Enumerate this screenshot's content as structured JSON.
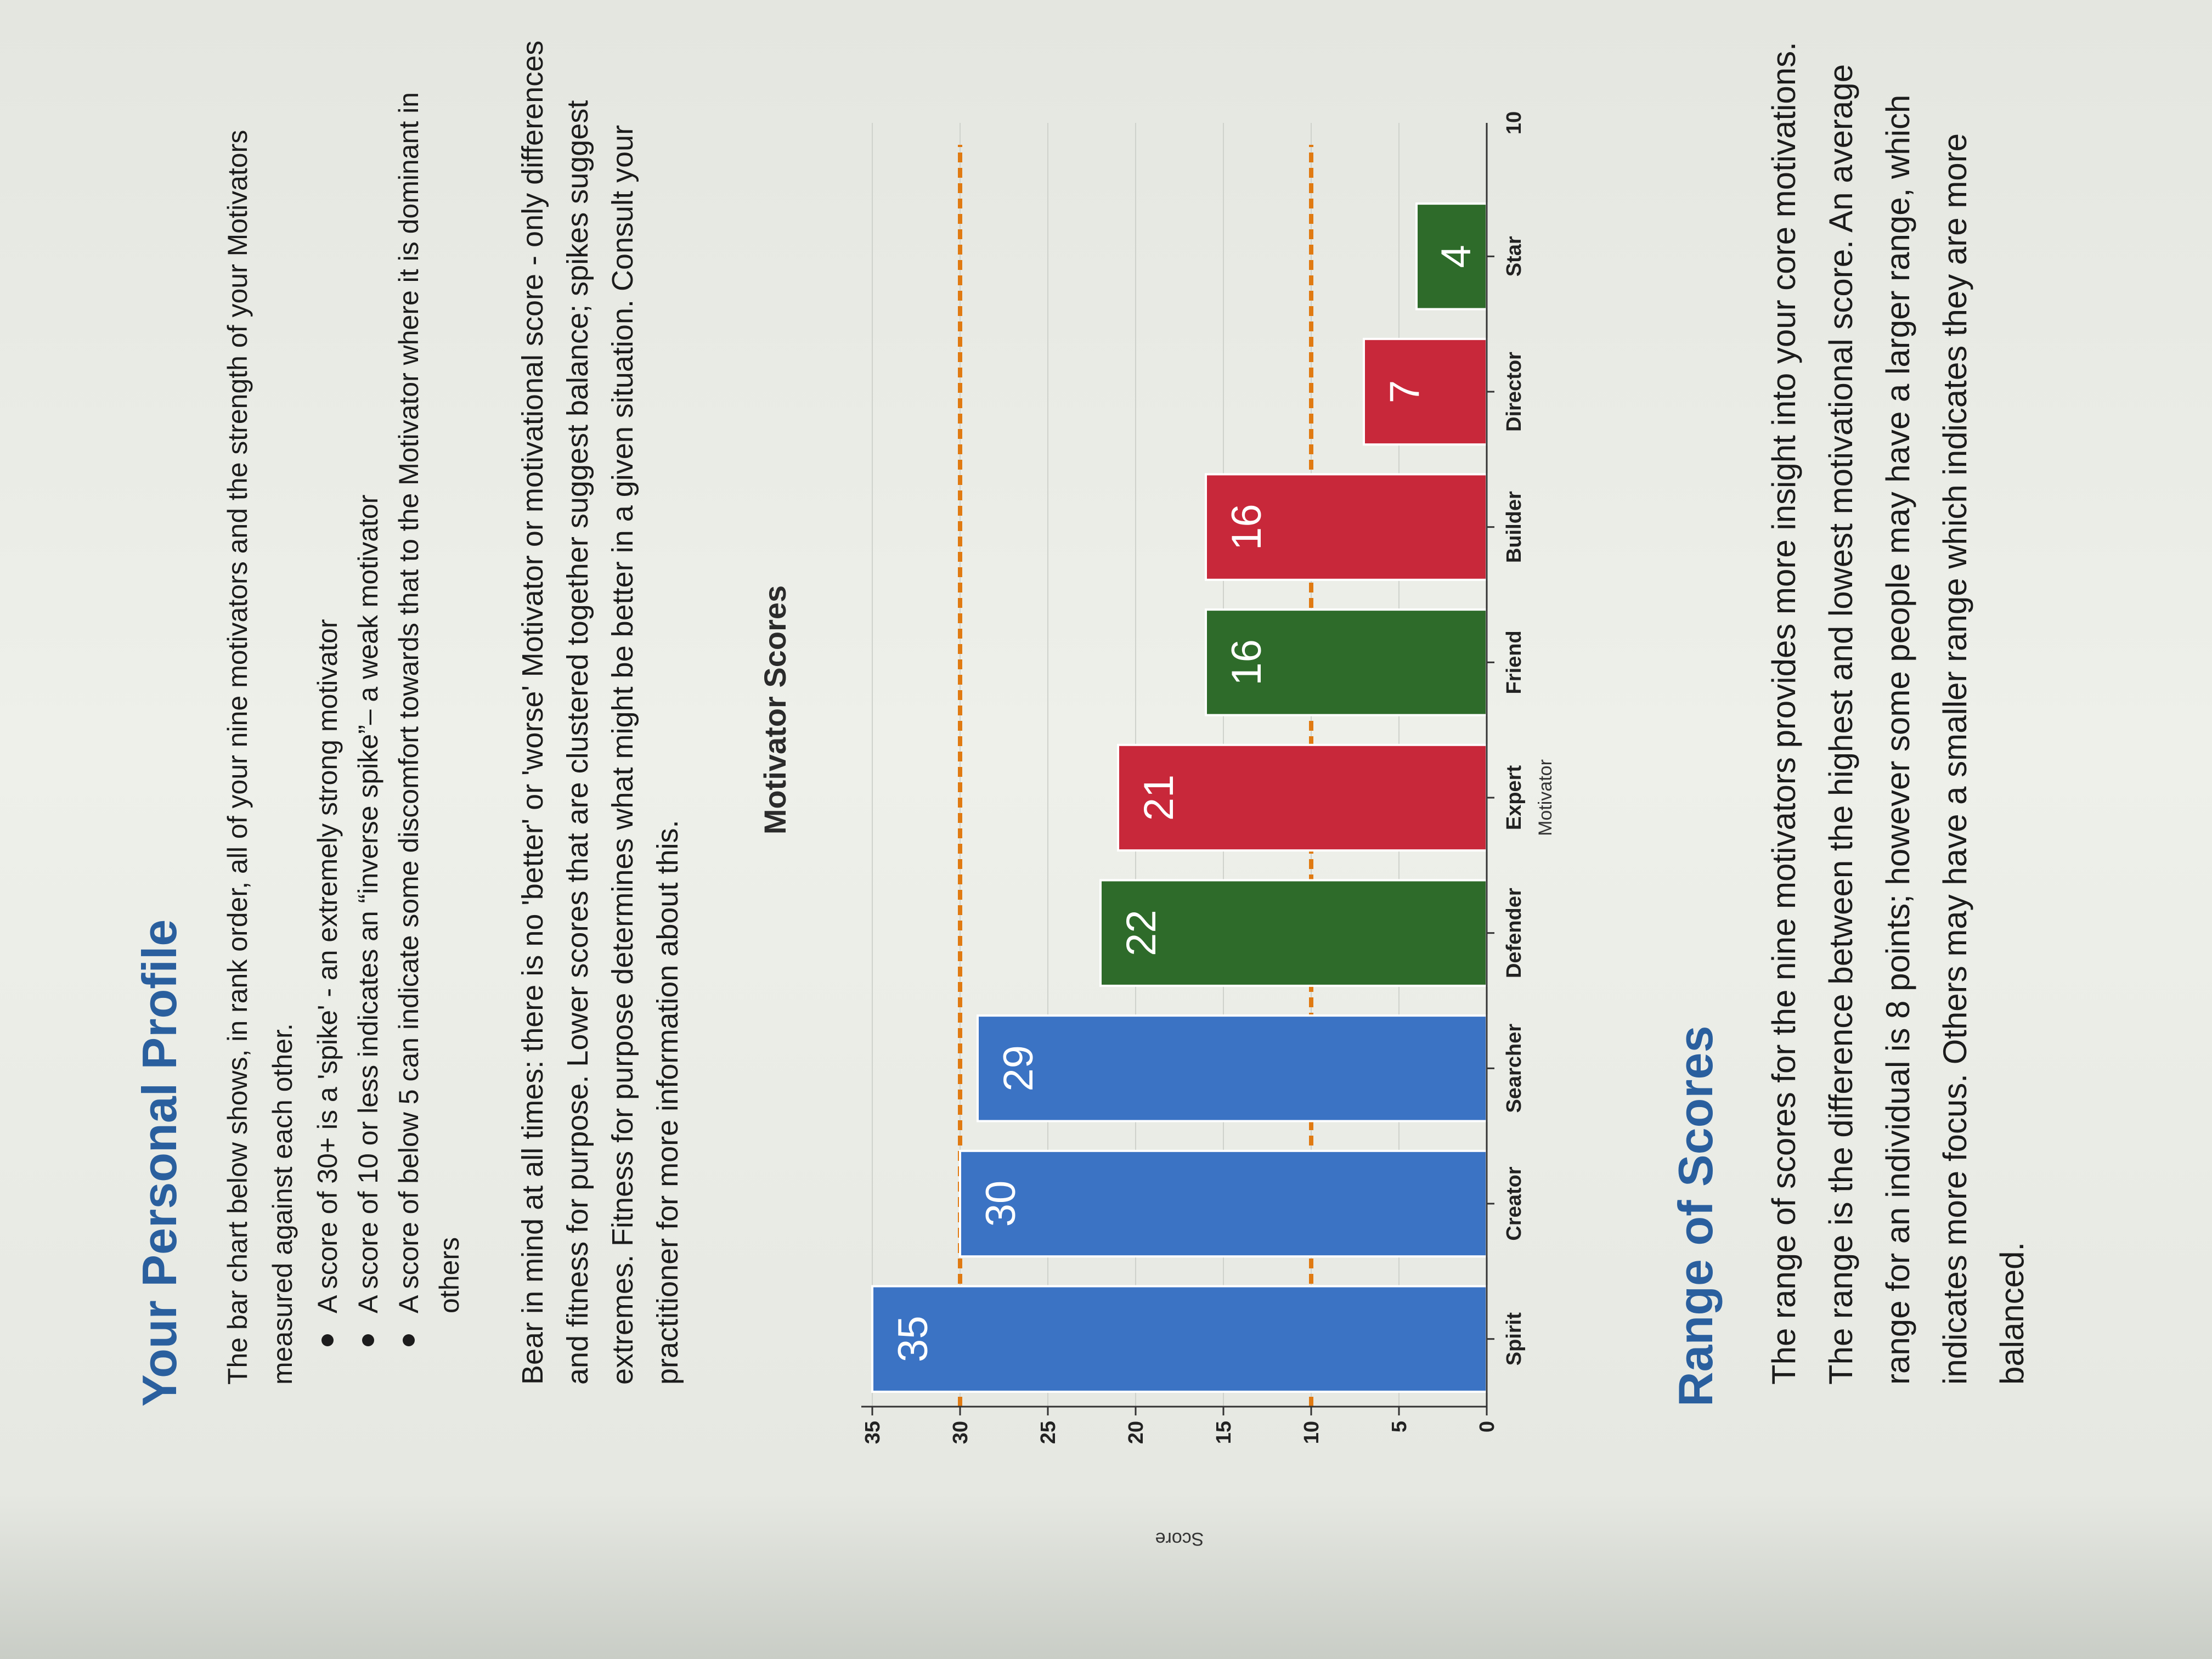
{
  "profile": {
    "title": "Your Personal Profile",
    "intro": "The bar chart below shows, in rank order, all of your nine motivators and the strength of your Motivators measured against each other.",
    "bullets": [
      "A score of 30+ is a 'spike' - an extremely strong motivator",
      "A score of 10 or less indicates an “inverse spike”– a weak motivator",
      "A score of below 5 can indicate some discomfort towards that to the Motivator where it is dominant in others"
    ],
    "note": "Bear in mind at all times: there is no 'better' or 'worse' Motivator or motivational score - only differences and fitness for purpose. Lower scores that are clustered together suggest balance; spikes suggest extremes. Fitness for purpose determines what might be better in a given situation. Consult your practitioner for more information about this."
  },
  "chart_data": {
    "type": "bar",
    "title": "Motivator Scores",
    "xlabel": "Motivator",
    "ylabel": "Score",
    "categories": [
      "Spirit",
      "Creator",
      "Searcher",
      "Defender",
      "Expert",
      "Friend",
      "Builder",
      "Director",
      "Star"
    ],
    "values": [
      35,
      30,
      29,
      22,
      21,
      16,
      16,
      7,
      4
    ],
    "bar_colors": [
      "#3b73c4",
      "#3b73c4",
      "#3b73c4",
      "#2e6b2a",
      "#c8283a",
      "#2e6b2a",
      "#c8283a",
      "#c8283a",
      "#2e6b2a"
    ],
    "ylim": [
      0,
      35
    ],
    "yticks": [
      "0",
      "5",
      "10",
      "15",
      "20",
      "25",
      "30",
      "35"
    ],
    "reference_lines": [
      10,
      30
    ],
    "reference_color": "#e07a12",
    "extra_tick_label": "10",
    "grid": true
  },
  "range": {
    "title": "Range of Scores",
    "text": "The range of scores for the nine motivators provides more insight into your core motivations. The range is the difference between the highest and lowest motivational score. An average range for an individual is 8 points; however some people may have a larger range, which indicates more focus. Others may have a smaller range which indicates they are more balanced."
  }
}
